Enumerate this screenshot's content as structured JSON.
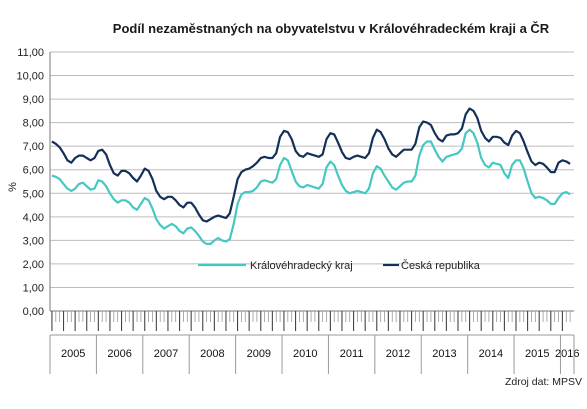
{
  "chart_data": {
    "type": "line",
    "title": "Podíl nezaměstnaných  na obyvatelstvu  v Královéhradeckém  kraji a ČR",
    "ylabel": "%",
    "xlabel": "",
    "ylim": [
      0,
      11
    ],
    "yticks": [
      "0,00",
      "1,00",
      "2,00",
      "3,00",
      "4,00",
      "5,00",
      "6,00",
      "7,00",
      "8,00",
      "9,00",
      "10,00",
      "11,00"
    ],
    "grid": true,
    "legend_position": "center-right",
    "years": [
      "2005",
      "2006",
      "2007",
      "2008",
      "2009",
      "2010",
      "2011",
      "2012",
      "2013",
      "2014",
      "2015",
      "2016"
    ],
    "x_start": "2005-01",
    "x_unit": "month",
    "series": [
      {
        "name": "Královéhradecký kraj",
        "color": "#45c8c2",
        "values": [
          5.75,
          5.7,
          5.6,
          5.4,
          5.2,
          5.1,
          5.2,
          5.4,
          5.45,
          5.3,
          5.15,
          5.2,
          5.55,
          5.5,
          5.3,
          5.0,
          4.75,
          4.6,
          4.7,
          4.7,
          4.6,
          4.4,
          4.3,
          4.55,
          4.8,
          4.7,
          4.35,
          3.9,
          3.65,
          3.5,
          3.6,
          3.7,
          3.6,
          3.4,
          3.3,
          3.5,
          3.55,
          3.4,
          3.2,
          2.95,
          2.85,
          2.85,
          3.0,
          3.1,
          3.0,
          2.95,
          3.05,
          3.7,
          4.55,
          4.95,
          5.05,
          5.05,
          5.1,
          5.25,
          5.5,
          5.55,
          5.5,
          5.45,
          5.6,
          6.2,
          6.5,
          6.4,
          5.95,
          5.5,
          5.3,
          5.25,
          5.35,
          5.3,
          5.25,
          5.2,
          5.4,
          6.1,
          6.35,
          6.2,
          5.75,
          5.35,
          5.1,
          5.0,
          5.05,
          5.1,
          5.05,
          5.0,
          5.2,
          5.85,
          6.15,
          6.05,
          5.75,
          5.5,
          5.25,
          5.15,
          5.3,
          5.45,
          5.5,
          5.5,
          5.75,
          6.6,
          7.05,
          7.2,
          7.2,
          6.85,
          6.55,
          6.35,
          6.55,
          6.6,
          6.65,
          6.7,
          6.9,
          7.55,
          7.7,
          7.55,
          7.15,
          6.5,
          6.2,
          6.1,
          6.3,
          6.25,
          6.2,
          5.85,
          5.65,
          6.2,
          6.4,
          6.4,
          6.05,
          5.5,
          5.0,
          4.8,
          4.85,
          4.8,
          4.7,
          4.55,
          4.55,
          4.8,
          5.0,
          5.05,
          4.95
        ]
      },
      {
        "name": "Česká republika",
        "color": "#14305a",
        "values": [
          7.2,
          7.1,
          6.95,
          6.7,
          6.4,
          6.3,
          6.5,
          6.6,
          6.6,
          6.5,
          6.4,
          6.5,
          6.8,
          6.85,
          6.65,
          6.2,
          5.85,
          5.75,
          5.95,
          5.95,
          5.85,
          5.65,
          5.5,
          5.75,
          6.05,
          5.95,
          5.6,
          5.1,
          4.85,
          4.75,
          4.85,
          4.85,
          4.7,
          4.5,
          4.4,
          4.6,
          4.6,
          4.4,
          4.1,
          3.85,
          3.8,
          3.9,
          4.0,
          4.05,
          4.0,
          3.95,
          4.15,
          4.85,
          5.6,
          5.9,
          6.0,
          6.05,
          6.15,
          6.3,
          6.5,
          6.55,
          6.5,
          6.5,
          6.7,
          7.4,
          7.65,
          7.6,
          7.3,
          6.8,
          6.6,
          6.55,
          6.7,
          6.65,
          6.6,
          6.55,
          6.65,
          7.3,
          7.55,
          7.5,
          7.15,
          6.75,
          6.5,
          6.45,
          6.55,
          6.6,
          6.55,
          6.5,
          6.7,
          7.35,
          7.7,
          7.6,
          7.3,
          6.9,
          6.65,
          6.55,
          6.7,
          6.85,
          6.85,
          6.85,
          7.1,
          7.8,
          8.05,
          8.0,
          7.9,
          7.55,
          7.3,
          7.2,
          7.45,
          7.5,
          7.5,
          7.55,
          7.75,
          8.35,
          8.6,
          8.5,
          8.2,
          7.65,
          7.35,
          7.2,
          7.4,
          7.4,
          7.35,
          7.15,
          7.05,
          7.45,
          7.65,
          7.55,
          7.2,
          6.75,
          6.35,
          6.2,
          6.3,
          6.25,
          6.1,
          5.9,
          5.9,
          6.3,
          6.4,
          6.35,
          6.25
        ]
      }
    ]
  },
  "source": "Zdroj dat: MPSV"
}
